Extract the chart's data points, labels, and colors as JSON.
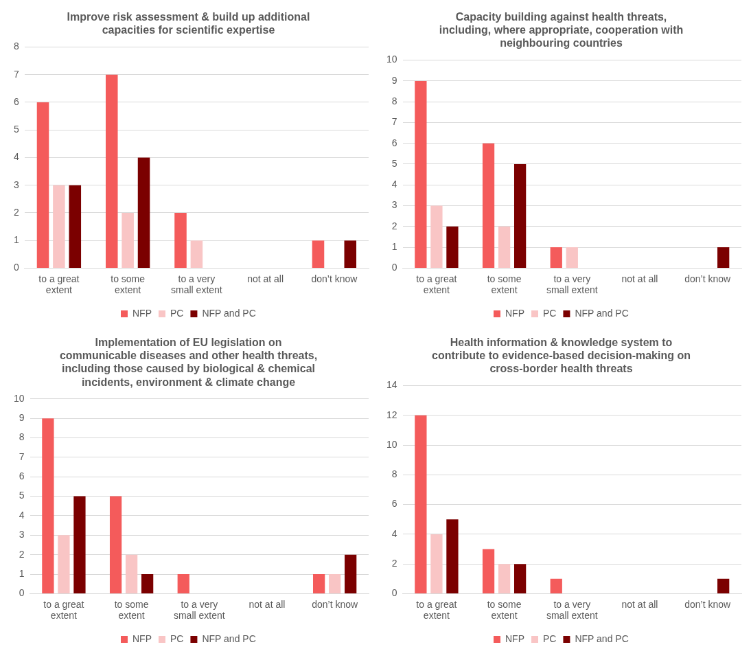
{
  "chart_data": [
    {
      "type": "bar",
      "title": "Improve risk assessment & build up additional capacities for scientific expertise",
      "categories": [
        "to a great extent",
        "to some extent",
        "to a very small extent",
        "not at all",
        "don’t know"
      ],
      "series": [
        {
          "name": "NFP",
          "color": "#f45b5b",
          "values": [
            6,
            7,
            2,
            0,
            1
          ]
        },
        {
          "name": "PC",
          "color": "#f9c5c5",
          "values": [
            3,
            2,
            1,
            0,
            0
          ]
        },
        {
          "name": "NFP and PC",
          "color": "#7b0000",
          "values": [
            3,
            4,
            0,
            0,
            1
          ]
        }
      ],
      "ylim": [
        0,
        8
      ],
      "yticks": [
        0,
        1,
        2,
        3,
        4,
        5,
        6,
        7,
        8
      ],
      "grid": "y",
      "legend": "bottom"
    },
    {
      "type": "bar",
      "title": "Capacity building against health threats, including, where appropriate, cooperation with neighbouring countries",
      "categories": [
        "to a great extent",
        "to some extent",
        "to a very small extent",
        "not at all",
        "don’t know"
      ],
      "series": [
        {
          "name": "NFP",
          "color": "#f45b5b",
          "values": [
            9,
            6,
            1,
            0,
            0
          ]
        },
        {
          "name": "PC",
          "color": "#f9c5c5",
          "values": [
            3,
            2,
            1,
            0,
            0
          ]
        },
        {
          "name": "NFP and PC",
          "color": "#7b0000",
          "values": [
            2,
            5,
            0,
            0,
            1
          ]
        }
      ],
      "ylim": [
        0,
        10
      ],
      "yticks": [
        0,
        1,
        2,
        3,
        4,
        5,
        6,
        7,
        8,
        9,
        10
      ],
      "grid": "y",
      "legend": "bottom"
    },
    {
      "type": "bar",
      "title": "Implementation of EU legislation on communicable diseases and other health threats, including those caused by biological & chemical incidents, environment & climate change",
      "categories": [
        "to a great extent",
        "to some extent",
        "to a very small extent",
        "not at all",
        "don’t know"
      ],
      "series": [
        {
          "name": "NFP",
          "color": "#f45b5b",
          "values": [
            9,
            5,
            1,
            0,
            1
          ]
        },
        {
          "name": "PC",
          "color": "#f9c5c5",
          "values": [
            3,
            2,
            0,
            0,
            1
          ]
        },
        {
          "name": "NFP and PC",
          "color": "#7b0000",
          "values": [
            5,
            1,
            0,
            0,
            2
          ]
        }
      ],
      "ylim": [
        0,
        10
      ],
      "yticks": [
        0,
        1,
        2,
        3,
        4,
        5,
        6,
        7,
        8,
        9,
        10
      ],
      "grid": "y",
      "legend": "bottom"
    },
    {
      "type": "bar",
      "title": "Health information & knowledge system to contribute to evidence-based decision-making on cross-border health threats",
      "categories": [
        "to a great extent",
        "to some extent",
        "to a very small extent",
        "not at all",
        "don’t know"
      ],
      "series": [
        {
          "name": "NFP",
          "color": "#f45b5b",
          "values": [
            12,
            3,
            1,
            0,
            0
          ]
        },
        {
          "name": "PC",
          "color": "#f9c5c5",
          "values": [
            4,
            2,
            0,
            0,
            0
          ]
        },
        {
          "name": "NFP and PC",
          "color": "#7b0000",
          "values": [
            5,
            2,
            0,
            0,
            1
          ]
        }
      ],
      "ylim": [
        0,
        14
      ],
      "yticks": [
        0,
        2,
        4,
        6,
        8,
        10,
        12,
        14
      ],
      "grid": "y",
      "legend": "bottom"
    }
  ]
}
